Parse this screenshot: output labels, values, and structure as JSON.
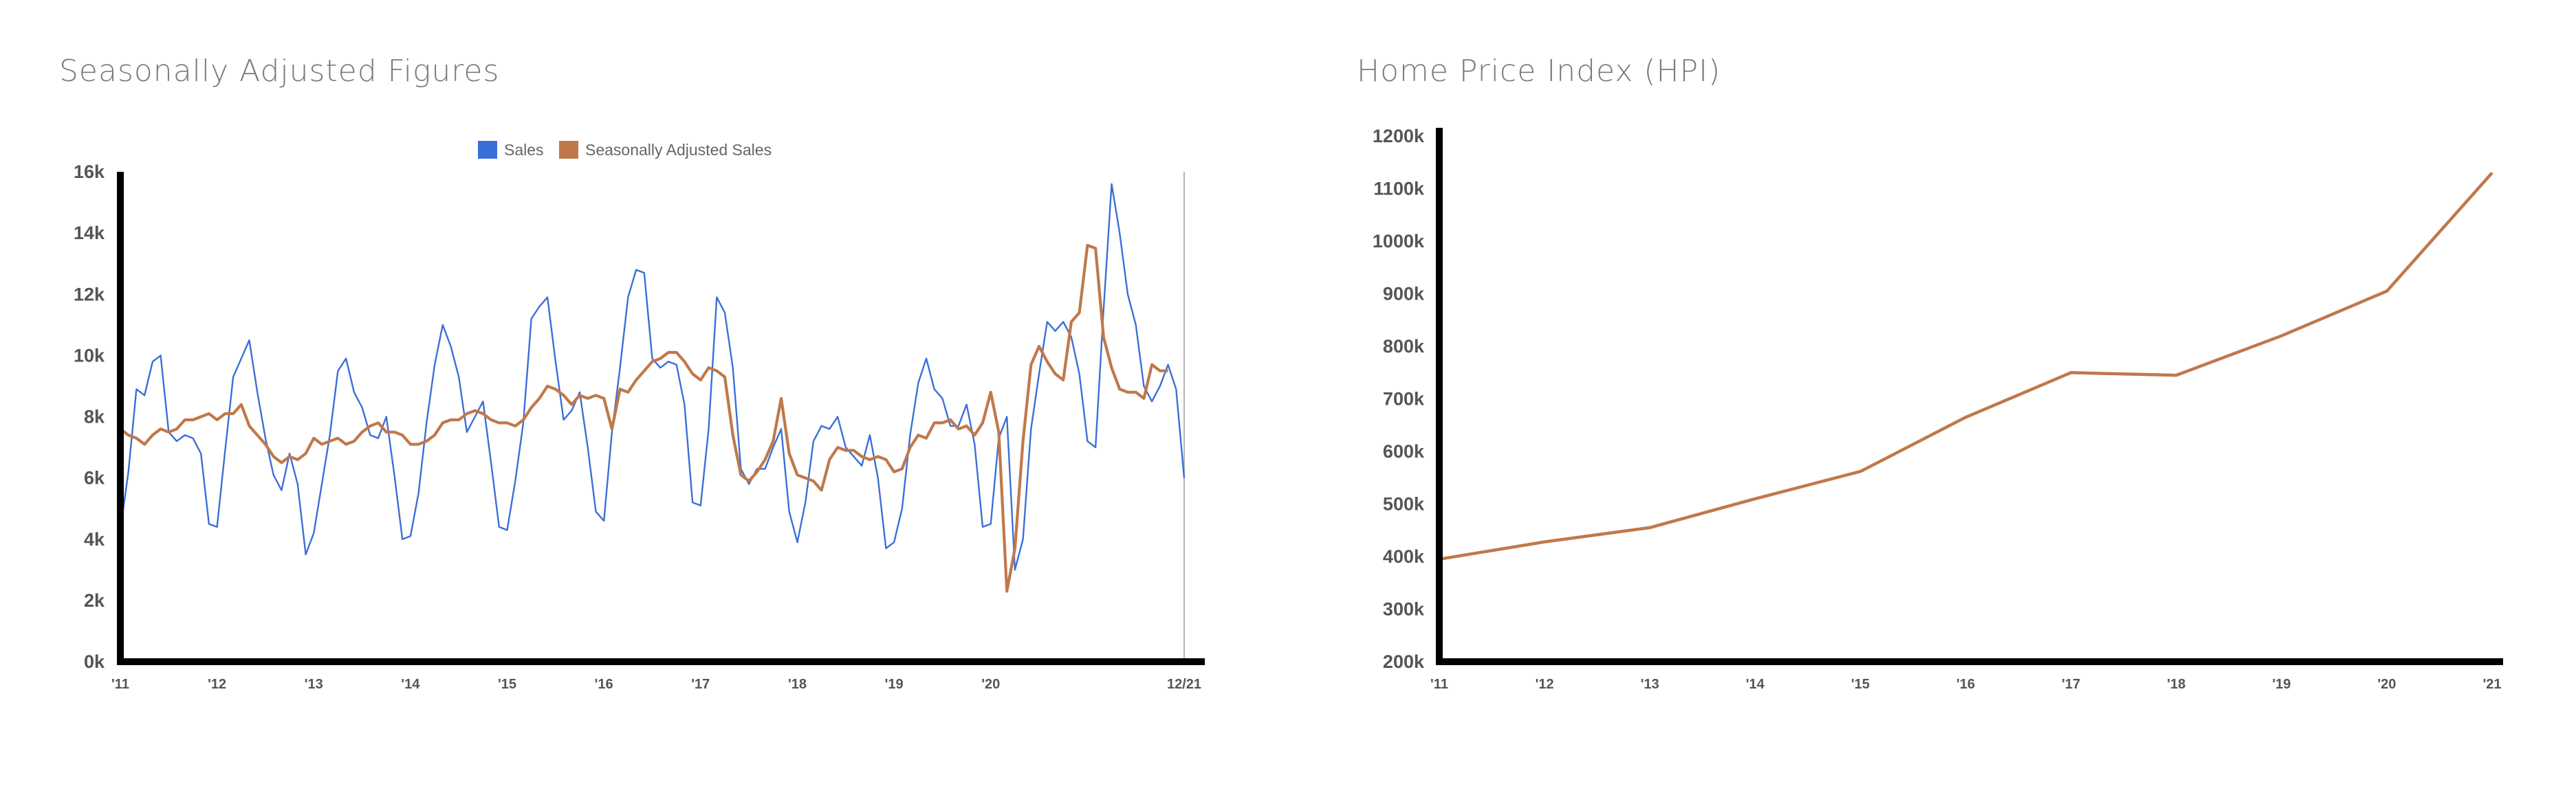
{
  "titles": {
    "left": "Seasonally Adjusted Figures",
    "right": "Home Price Index (HPI)"
  },
  "chart_data": [
    {
      "type": "line",
      "title": "Seasonally Adjusted Figures",
      "xlabel": "",
      "ylabel": "",
      "x_ticks": [
        "'11",
        "'12",
        "'13",
        "'14",
        "'15",
        "'16",
        "'17",
        "'18",
        "'19",
        "'20",
        "12/21"
      ],
      "y_ticks": [
        "0k",
        "2k",
        "4k",
        "6k",
        "8k",
        "10k",
        "12k",
        "14k",
        "16k"
      ],
      "ylim": [
        0,
        16000
      ],
      "legend": {
        "position": "top"
      },
      "colors": {
        "Sales": "#3b6fd8",
        "Seasonally Adjusted Sales": "#c0784a"
      },
      "series": [
        {
          "name": "Sales",
          "values": [
            4300,
            6200,
            8900,
            8700,
            9800,
            10000,
            7500,
            7200,
            7400,
            7300,
            6800,
            4500,
            4400,
            6900,
            9300,
            9900,
            10500,
            8800,
            7300,
            6100,
            5600,
            6800,
            5800,
            3500,
            4200,
            5800,
            7400,
            9500,
            9900,
            8800,
            8300,
            7400,
            7300,
            8000,
            6100,
            4000,
            4100,
            5500,
            7800,
            9700,
            11000,
            10300,
            9300,
            7500,
            8000,
            8500,
            6500,
            4400,
            4300,
            5900,
            7800,
            11200,
            11600,
            11900,
            9800,
            7900,
            8200,
            8800,
            7000,
            4900,
            4600,
            7500,
            9600,
            11900,
            12800,
            12700,
            9900,
            9600,
            9800,
            9700,
            8400,
            5200,
            5100,
            7600,
            11900,
            11400,
            9600,
            6300,
            5800,
            6300,
            6300,
            7000,
            7600,
            4900,
            3900,
            5200,
            7200,
            7700,
            7600,
            8000,
            7000,
            6700,
            6400,
            7400,
            6000,
            3700,
            3900,
            5000,
            7400,
            9100,
            9900,
            8900,
            8600,
            7700,
            7700,
            8400,
            7100,
            4400,
            4500,
            7300,
            8000,
            3000,
            4000,
            7600,
            9400,
            11100,
            10800,
            11100,
            10600,
            9400,
            7200,
            7000,
            11500,
            15600,
            14000,
            12000,
            11000,
            9000,
            8500,
            9000,
            9700,
            8900,
            6000
          ]
        },
        {
          "name": "Seasonally Adjusted Sales",
          "values": [
            7600,
            7400,
            7300,
            7100,
            7400,
            7600,
            7500,
            7600,
            7900,
            7900,
            8000,
            8100,
            7900,
            8100,
            8100,
            8400,
            7700,
            7400,
            7100,
            6700,
            6500,
            6700,
            6600,
            6800,
            7300,
            7100,
            7200,
            7300,
            7100,
            7200,
            7500,
            7700,
            7800,
            7500,
            7500,
            7400,
            7100,
            7100,
            7200,
            7400,
            7800,
            7900,
            7900,
            8100,
            8200,
            8100,
            7900,
            7800,
            7800,
            7700,
            7900,
            8300,
            8600,
            9000,
            8900,
            8700,
            8400,
            8700,
            8600,
            8700,
            8600,
            7600,
            8900,
            8800,
            9200,
            9500,
            9800,
            9900,
            10100,
            10100,
            9800,
            9400,
            9200,
            9600,
            9500,
            9300,
            7400,
            6100,
            5900,
            6200,
            6600,
            7200,
            8600,
            6800,
            6100,
            6000,
            5900,
            5600,
            6600,
            7000,
            6900,
            6900,
            6700,
            6600,
            6700,
            6600,
            6200,
            6300,
            7000,
            7400,
            7300,
            7800,
            7800,
            7900,
            7600,
            7700,
            7400,
            7800,
            8800,
            7500,
            2300,
            3700,
            7200,
            9700,
            10300,
            9800,
            9400,
            9200,
            11100,
            11400,
            13600,
            13500,
            10600,
            9600,
            8900,
            8800,
            8800,
            8600,
            9700,
            9500,
            9500
          ]
        }
      ]
    },
    {
      "type": "line",
      "title": "Home Price Index (HPI)",
      "xlabel": "",
      "ylabel": "",
      "x": [
        "'11",
        "'12",
        "'13",
        "'14",
        "'15",
        "'16",
        "'17",
        "'18",
        "'19",
        "'20",
        "'21"
      ],
      "y_ticks": [
        "200k",
        "300k",
        "400k",
        "500k",
        "600k",
        "700k",
        "800k",
        "900k",
        "1000k",
        "1100k",
        "1200k"
      ],
      "ylim": [
        200000,
        1200000
      ],
      "colors": {
        "HPI": "#c0784a"
      },
      "series": [
        {
          "name": "",
          "values": [
            395000,
            428000,
            455000,
            510000,
            562000,
            665000,
            750000,
            745000,
            820000,
            905000,
            1130000
          ]
        }
      ]
    }
  ]
}
